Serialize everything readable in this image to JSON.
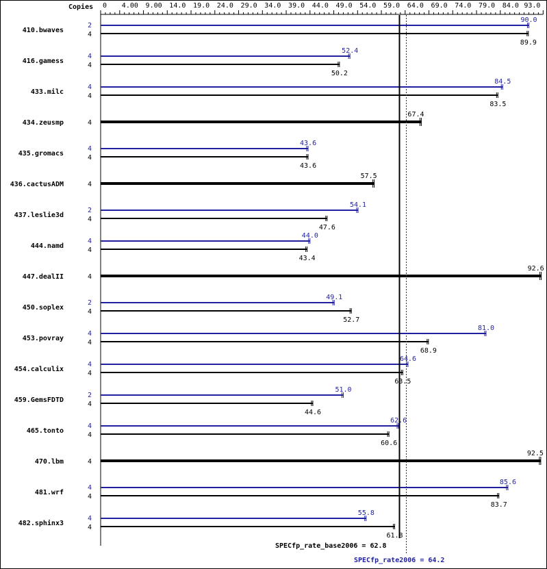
{
  "chart_data": {
    "type": "bar",
    "orientation": "horizontal",
    "copies_header": "Copies",
    "axis": {
      "min": 0,
      "max": 93,
      "tick_labels": [
        "0",
        "4.00",
        "9.00",
        "14.0",
        "19.0",
        "24.0",
        "29.0",
        "34.0",
        "39.0",
        "44.0",
        "49.0",
        "54.0",
        "59.0",
        "64.0",
        "69.0",
        "74.0",
        "79.0",
        "84.0",
        "93.0"
      ],
      "tick_values": [
        0,
        4,
        9,
        14,
        19,
        24,
        29,
        34,
        39,
        44,
        49,
        54,
        59,
        64,
        69,
        74,
        79,
        84,
        93
      ]
    },
    "colors": {
      "peak": "#1f1f9f",
      "base": "#000000"
    },
    "benchmarks": [
      {
        "name": "410.bwaves",
        "peak_copies": "2",
        "peak": 90.0,
        "peak_label": "90.0",
        "base_copies": "4",
        "base": 89.9,
        "base_label": "89.9"
      },
      {
        "name": "416.gamess",
        "peak_copies": "4",
        "peak": 52.4,
        "peak_label": "52.4",
        "base_copies": "4",
        "base": 50.2,
        "base_label": "50.2"
      },
      {
        "name": "433.milc",
        "peak_copies": "4",
        "peak": 84.5,
        "peak_label": "84.5",
        "base_copies": "4",
        "base": 83.5,
        "base_label": "83.5"
      },
      {
        "name": "434.zeusmp",
        "base_copies": "4",
        "base": 67.4,
        "base_label": "67.4"
      },
      {
        "name": "435.gromacs",
        "peak_copies": "4",
        "peak": 43.6,
        "peak_label": "43.6",
        "base_copies": "4",
        "base": 43.6,
        "base_label": "43.6"
      },
      {
        "name": "436.cactusADM",
        "base_copies": "4",
        "base": 57.5,
        "base_label": "57.5"
      },
      {
        "name": "437.leslie3d",
        "peak_copies": "2",
        "peak": 54.1,
        "peak_label": "54.1",
        "base_copies": "4",
        "base": 47.6,
        "base_label": "47.6"
      },
      {
        "name": "444.namd",
        "peak_copies": "4",
        "peak": 44.0,
        "peak_label": "44.0",
        "base_copies": "4",
        "base": 43.4,
        "base_label": "43.4"
      },
      {
        "name": "447.dealII",
        "base_copies": "4",
        "base": 92.6,
        "base_label": "92.6"
      },
      {
        "name": "450.soplex",
        "peak_copies": "2",
        "peak": 49.1,
        "peak_label": "49.1",
        "base_copies": "4",
        "base": 52.7,
        "base_label": "52.7"
      },
      {
        "name": "453.povray",
        "peak_copies": "4",
        "peak": 81.0,
        "peak_label": "81.0",
        "base_copies": "4",
        "base": 68.9,
        "base_label": "68.9"
      },
      {
        "name": "454.calculix",
        "peak_copies": "4",
        "peak": 64.6,
        "peak_label": "64.6",
        "base_copies": "4",
        "base": 63.5,
        "base_label": "63.5"
      },
      {
        "name": "459.GemsFDTD",
        "peak_copies": "2",
        "peak": 51.0,
        "peak_label": "51.0",
        "base_copies": "4",
        "base": 44.6,
        "base_label": "44.6"
      },
      {
        "name": "465.tonto",
        "peak_copies": "4",
        "peak": 62.6,
        "peak_label": "62.6",
        "base_copies": "4",
        "base": 60.6,
        "base_label": "60.6"
      },
      {
        "name": "470.lbm",
        "base_copies": "4",
        "base": 92.5,
        "base_label": "92.5"
      },
      {
        "name": "481.wrf",
        "peak_copies": "4",
        "peak": 85.6,
        "peak_label": "85.6",
        "base_copies": "4",
        "base": 83.7,
        "base_label": "83.7"
      },
      {
        "name": "482.sphinx3",
        "peak_copies": "4",
        "peak": 55.8,
        "peak_label": "55.8",
        "base_copies": "4",
        "base": 61.8,
        "base_label": "61.8"
      }
    ],
    "reference_lines": [
      {
        "name": "base",
        "value": 62.8,
        "label": "SPECfp_rate_base2006 = 62.8",
        "style": "solid",
        "color": "#000000"
      },
      {
        "name": "peak",
        "value": 64.2,
        "label": "SPECfp_rate2006 = 64.2",
        "style": "dotted",
        "color": "#1f1f9f"
      }
    ]
  }
}
